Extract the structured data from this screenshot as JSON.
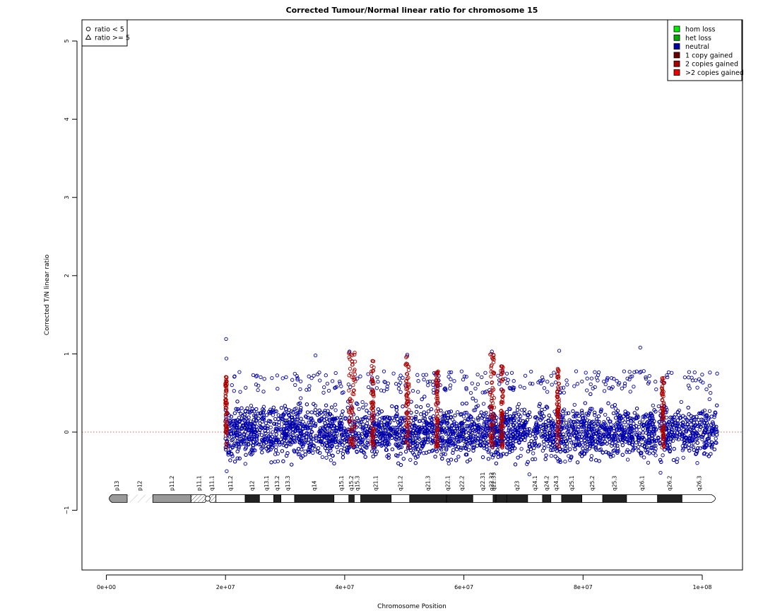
{
  "chart_data": {
    "type": "scatter",
    "title": "Corrected Tumour/Normal linear ratio for chromosome  15",
    "xlabel": "Chromosome Position",
    "ylabel": "Corrected T/N linear ratio",
    "xlim": [
      -4000000,
      106000000
    ],
    "ylim": [
      -1.75,
      5.3
    ],
    "x_ticks": [
      {
        "value": 0,
        "label": "0e+00"
      },
      {
        "value": 20000000,
        "label": "2e+07"
      },
      {
        "value": 40000000,
        "label": "4e+07"
      },
      {
        "value": 60000000,
        "label": "6e+07"
      },
      {
        "value": 80000000,
        "label": "8e+07"
      },
      {
        "value": 100000000,
        "label": "1e+08"
      }
    ],
    "y_ticks": [
      {
        "value": -1,
        "label": "−1"
      },
      {
        "value": 0,
        "label": "0"
      },
      {
        "value": 1,
        "label": "1"
      },
      {
        "value": 2,
        "label": "2"
      },
      {
        "value": 3,
        "label": "3"
      },
      {
        "value": 4,
        "label": "4"
      },
      {
        "value": 5,
        "label": "5"
      }
    ],
    "reference_line": {
      "y": 0,
      "style": "dotted",
      "color": "#cc6666"
    },
    "data_range_x": [
      20000000,
      102500000
    ],
    "data_band_y": [
      -0.45,
      0.62
    ],
    "outlier_points": [
      {
        "x": 20100000,
        "y": 1.19
      },
      {
        "x": 20150000,
        "y": 0.94
      },
      {
        "x": 35100000,
        "y": 0.98
      },
      {
        "x": 40800000,
        "y": 1.03
      },
      {
        "x": 50500000,
        "y": 0.99
      },
      {
        "x": 64700000,
        "y": 1.03
      },
      {
        "x": 76000000,
        "y": 1.04
      },
      {
        "x": 89600000,
        "y": 1.08
      },
      {
        "x": 20200000,
        "y": -0.5
      },
      {
        "x": 71000000,
        "y": -0.54
      },
      {
        "x": 93000000,
        "y": -0.52
      }
    ],
    "gained_regions": [
      {
        "x_start": 19950000,
        "x_end": 20250000,
        "y_max": 0.72
      },
      {
        "x_start": 40700000,
        "x_end": 41800000,
        "y_max": 1.02
      },
      {
        "x_start": 44400000,
        "x_end": 44900000,
        "y_max": 0.93
      },
      {
        "x_start": 50200000,
        "x_end": 50800000,
        "y_max": 0.98
      },
      {
        "x_start": 55300000,
        "x_end": 55700000,
        "y_max": 0.78
      },
      {
        "x_start": 64400000,
        "x_end": 65100000,
        "y_max": 1.02
      },
      {
        "x_start": 66200000,
        "x_end": 66600000,
        "y_max": 0.85
      },
      {
        "x_start": 75600000,
        "x_end": 76000000,
        "y_max": 0.82
      },
      {
        "x_start": 93200000,
        "x_end": 93600000,
        "y_max": 0.72
      }
    ],
    "colors": {
      "hom_loss": "#00ee00",
      "het_loss": "#00aa00",
      "neutral": "#0000aa",
      "one_copy_gained": "#6b0000",
      "two_copies_gained": "#aa0000",
      "more_copies_gained": "#ee0000"
    },
    "legend_shapes": [
      {
        "symbol": "circle",
        "label": "ratio < 5"
      },
      {
        "symbol": "triangle",
        "label": "ratio >= 5"
      }
    ],
    "legend_states": [
      {
        "key": "hom_loss",
        "label": "hom loss"
      },
      {
        "key": "het_loss",
        "label": "het loss"
      },
      {
        "key": "neutral",
        "label": "neutral"
      },
      {
        "key": "one_copy_gained",
        "label": "1 copy gained"
      },
      {
        "key": "two_copies_gained",
        "label": "2 copies gained"
      },
      {
        "key": "more_copies_gained",
        ">2 copies gained": null,
        "label": ">2 copies gained"
      }
    ],
    "ideogram": {
      "y": -0.85,
      "bands": [
        {
          "name": "p13",
          "start": 0,
          "end": 3500000,
          "stain": "stalk"
        },
        {
          "name": "p12",
          "start": 3500000,
          "end": 7800000,
          "stain": "gvar"
        },
        {
          "name": "p11.2",
          "start": 7800000,
          "end": 14200000,
          "stain": "gpos50"
        },
        {
          "name": "p11.1",
          "start": 14200000,
          "end": 17000000,
          "stain": "acen"
        },
        {
          "name": "q11.1",
          "start": 17000000,
          "end": 18400000,
          "stain": "acen"
        },
        {
          "name": "q11.2",
          "start": 18400000,
          "end": 23300000,
          "stain": "gneg"
        },
        {
          "name": "q12",
          "start": 23300000,
          "end": 25700000,
          "stain": "gpos100"
        },
        {
          "name": "q13.1",
          "start": 25700000,
          "end": 28100000,
          "stain": "gneg"
        },
        {
          "name": "q13.2",
          "start": 28100000,
          "end": 29300000,
          "stain": "gpos100"
        },
        {
          "name": "q13.3",
          "start": 29300000,
          "end": 31600000,
          "stain": "gneg"
        },
        {
          "name": "q14",
          "start": 31600000,
          "end": 38200000,
          "stain": "gpos100"
        },
        {
          "name": "q15.1",
          "start": 38200000,
          "end": 40700000,
          "stain": "gneg"
        },
        {
          "name": "q15.2",
          "start": 40700000,
          "end": 41600000,
          "stain": "gpos100"
        },
        {
          "name": "q15.3",
          "start": 41600000,
          "end": 42700000,
          "stain": "gneg"
        },
        {
          "name": "q21.1",
          "start": 42700000,
          "end": 47800000,
          "stain": "gpos100"
        },
        {
          "name": "q21.2",
          "start": 47800000,
          "end": 50900000,
          "stain": "gneg"
        },
        {
          "name": "q21.3",
          "start": 50900000,
          "end": 57100000,
          "stain": "gpos100"
        },
        {
          "name": "q22.1",
          "start": 57100000,
          "end": 61500000,
          "stain": "gpos100"
        },
        {
          "name": "q22.2",
          "start": 61500000,
          "end": 64900000,
          "stain": "gneg"
        },
        {
          "name": "q22.31",
          "start": 64900000,
          "end": 65300000,
          "stain": "gpos100"
        },
        {
          "name": "q22.32",
          "start": 65300000,
          "end": 65400000,
          "stain": "gneg"
        },
        {
          "name": "q22.33",
          "start": 65400000,
          "end": 67200000,
          "stain": "gpos100"
        },
        {
          "name": "q23",
          "start": 67200000,
          "end": 70700000,
          "stain": "gpos100"
        },
        {
          "name": "q24.1",
          "start": 70700000,
          "end": 73200000,
          "stain": "gneg"
        },
        {
          "name": "q24.2",
          "start": 73200000,
          "end": 74600000,
          "stain": "gpos100"
        },
        {
          "name": "q24.3",
          "start": 74600000,
          "end": 76400000,
          "stain": "gneg"
        },
        {
          "name": "q25.1",
          "start": 76400000,
          "end": 79800000,
          "stain": "gpos100"
        },
        {
          "name": "q25.2",
          "start": 79800000,
          "end": 83300000,
          "stain": "gneg"
        },
        {
          "name": "q25.3",
          "start": 83300000,
          "end": 87300000,
          "stain": "gpos100"
        },
        {
          "name": "q26.1",
          "start": 87300000,
          "end": 92500000,
          "stain": "gneg"
        },
        {
          "name": "q26.2",
          "start": 92500000,
          "end": 96600000,
          "stain": "gpos100"
        },
        {
          "name": "q26.3",
          "start": 96600000,
          "end": 102500000,
          "stain": "gneg"
        }
      ],
      "label_positions": [
        {
          "name": "p13",
          "pos": 1750000
        },
        {
          "name": "p12",
          "pos": 5650000
        },
        {
          "name": "p11.2",
          "pos": 11000000
        },
        {
          "name": "p11.1",
          "pos": 15600000
        },
        {
          "name": "q11.1",
          "pos": 17700000
        },
        {
          "name": "q11.2",
          "pos": 20850000
        },
        {
          "name": "q12",
          "pos": 24500000
        },
        {
          "name": "q13.1",
          "pos": 26900000
        },
        {
          "name": "q13.2",
          "pos": 28700000
        },
        {
          "name": "q13.3",
          "pos": 30450000
        },
        {
          "name": "q14",
          "pos": 34900000
        },
        {
          "name": "q15.1",
          "pos": 39450000
        },
        {
          "name": "q15.2",
          "pos": 41150000
        },
        {
          "name": "q15.3",
          "pos": 42150000
        },
        {
          "name": "q21.1",
          "pos": 45250000
        },
        {
          "name": "q21.2",
          "pos": 49350000
        },
        {
          "name": "q21.3",
          "pos": 54000000
        },
        {
          "name": "q22.1",
          "pos": 57300000
        },
        {
          "name": "q22.2",
          "pos": 59700000
        },
        {
          "name": "q22.31",
          "pos": 63200000
        },
        {
          "name": "q22.32",
          "pos": 64700000
        },
        {
          "name": "q22.33",
          "pos": 65000000
        },
        {
          "name": "q23",
          "pos": 68950000
        },
        {
          "name": "q24.1",
          "pos": 71950000
        },
        {
          "name": "q24.2",
          "pos": 73900000
        },
        {
          "name": "q24.3",
          "pos": 75500000
        },
        {
          "name": "q25.1",
          "pos": 78100000
        },
        {
          "name": "q25.2",
          "pos": 81550000
        },
        {
          "name": "q25.3",
          "pos": 85300000
        },
        {
          "name": "q26.1",
          "pos": 89900000
        },
        {
          "name": "q26.2",
          "pos": 94550000
        },
        {
          "name": "q26.3",
          "pos": 99550000
        }
      ]
    }
  }
}
